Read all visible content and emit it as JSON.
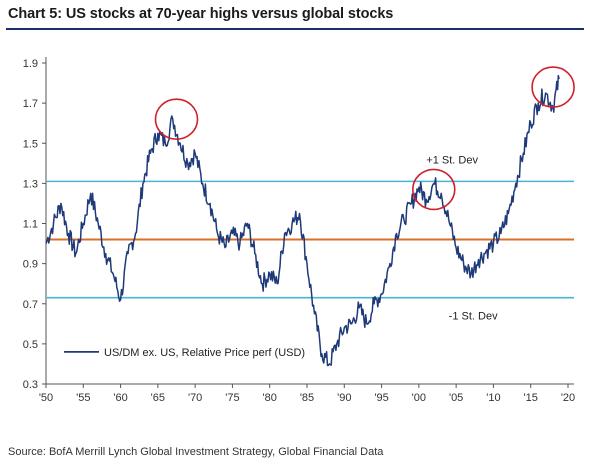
{
  "title": "Chart 5: US stocks at 70-year highs versus global stocks",
  "source": "Source: BofA Merrill Lynch Global Investment Strategy, Global Financial Data",
  "colors": {
    "series": "#1f3a78",
    "band": "#4ab3d6",
    "mean": "#d9702a",
    "circle": "#d0202a",
    "title_rule": "#1a2f6b"
  },
  "chart_data": {
    "type": "line",
    "title": "Chart 5: US stocks at 70-year highs versus global stocks",
    "xlabel": "",
    "ylabel": "",
    "xlim": [
      1950,
      2020
    ],
    "ylim": [
      0.3,
      1.9
    ],
    "x_ticks": [
      "'50",
      "'55",
      "'60",
      "'65",
      "'70",
      "'75",
      "'80",
      "'85",
      "'90",
      "'95",
      "'00",
      "'05",
      "'10",
      "'15",
      "'20"
    ],
    "y_ticks": [
      "0.3",
      "0.5",
      "0.7",
      "0.9",
      "1.1",
      "1.3",
      "1.5",
      "1.7",
      "1.9"
    ],
    "reference_lines": [
      {
        "label": "+1 St. Dev",
        "value": 1.31
      },
      {
        "label": "",
        "value": 1.02
      },
      {
        "label": "-1 St. Dev",
        "value": 0.73
      }
    ],
    "highlight_circles": [
      {
        "x": 1967.5,
        "y": 1.62
      },
      {
        "x": 2002,
        "y": 1.27
      },
      {
        "x": 2018,
        "y": 1.78
      }
    ],
    "legend_position": "bottom-left",
    "series": [
      {
        "name": "US/DM ex. US, Relative Price perf (USD)",
        "x": [
          1950,
          1951,
          1952,
          1953,
          1954,
          1955,
          1956,
          1957,
          1958,
          1959,
          1960,
          1961,
          1962,
          1963,
          1964,
          1965,
          1966,
          1967,
          1968,
          1969,
          1970,
          1971,
          1972,
          1973,
          1974,
          1975,
          1976,
          1977,
          1978,
          1979,
          1980,
          1981,
          1982,
          1983,
          1984,
          1985,
          1986,
          1987,
          1988,
          1989,
          1990,
          1991,
          1992,
          1993,
          1994,
          1995,
          1996,
          1997,
          1998,
          1999,
          2000,
          2001,
          2002,
          2003,
          2004,
          2005,
          2006,
          2007,
          2008,
          2009,
          2010,
          2011,
          2012,
          2013,
          2014,
          2015,
          2016,
          2017,
          2018,
          2018.8
        ],
        "y": [
          1.0,
          1.1,
          1.2,
          1.05,
          0.95,
          1.1,
          1.25,
          1.1,
          0.95,
          0.85,
          0.72,
          0.95,
          1.05,
          1.3,
          1.45,
          1.55,
          1.5,
          1.62,
          1.5,
          1.4,
          1.45,
          1.3,
          1.2,
          1.05,
          0.98,
          1.05,
          1.0,
          1.1,
          0.95,
          0.8,
          0.85,
          0.8,
          1.05,
          1.1,
          1.15,
          0.9,
          0.65,
          0.45,
          0.4,
          0.5,
          0.58,
          0.6,
          0.68,
          0.6,
          0.7,
          0.75,
          0.88,
          1.05,
          1.12,
          1.2,
          1.28,
          1.22,
          1.3,
          1.25,
          1.12,
          0.98,
          0.9,
          0.85,
          0.92,
          0.96,
          1.0,
          1.05,
          1.15,
          1.3,
          1.45,
          1.6,
          1.7,
          1.75,
          1.68,
          1.82
        ]
      }
    ]
  }
}
